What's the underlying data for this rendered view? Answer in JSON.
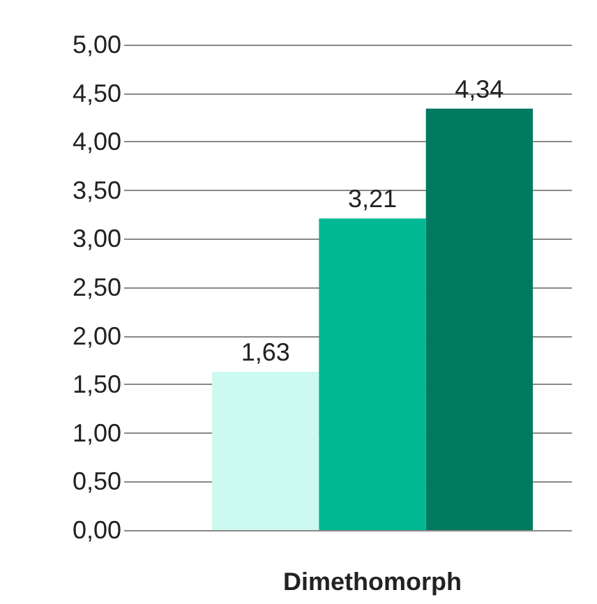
{
  "chart_data": {
    "type": "bar",
    "xlabel": "Dimethomorph",
    "categories": [
      null,
      null,
      null
    ],
    "values": [
      1.63,
      3.21,
      4.34
    ],
    "colors": [
      "#ccfaf0",
      "#00b894",
      "#007a5e"
    ],
    "value_labels": [
      "1,63",
      "3,21",
      "4,34"
    ],
    "ylim": [
      0,
      5
    ],
    "yticks": [
      {
        "value": 0,
        "label": "0,00"
      },
      {
        "value": 0.5,
        "label": "0,50"
      },
      {
        "value": 1,
        "label": "1,00"
      },
      {
        "value": 1.5,
        "label": "1,50"
      },
      {
        "value": 2,
        "label": "2,00"
      },
      {
        "value": 2.5,
        "label": "2,50"
      },
      {
        "value": 3,
        "label": "3,00"
      },
      {
        "value": 3.5,
        "label": "3,50"
      },
      {
        "value": 4,
        "label": "4,00"
      },
      {
        "value": 4.5,
        "label": "4,50"
      },
      {
        "value": 5,
        "label": "5,00"
      }
    ],
    "grid": "y"
  }
}
